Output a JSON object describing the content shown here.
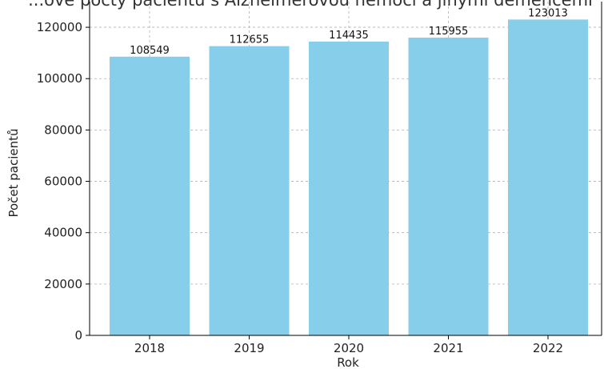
{
  "chart_data": {
    "type": "bar",
    "title": "...ové počty pacientů s Alzheimerovou nemocí a jinými demencemi",
    "xlabel": "Rok",
    "ylabel": "Počet pacientů",
    "categories": [
      "2018",
      "2019",
      "2020",
      "2021",
      "2022"
    ],
    "values": [
      108549,
      112655,
      114435,
      115955,
      123013
    ],
    "value_labels": [
      "108549",
      "112655",
      "114435",
      "115955",
      "123013"
    ],
    "ylim": [
      0,
      130000
    ],
    "yticks": [
      0,
      20000,
      40000,
      60000,
      80000,
      100000,
      120000
    ],
    "ytick_labels": [
      "0",
      "20000",
      "40000",
      "60000",
      "80000",
      "100000",
      "120000"
    ],
    "grid": true,
    "bar_color": "#87CEEB"
  }
}
